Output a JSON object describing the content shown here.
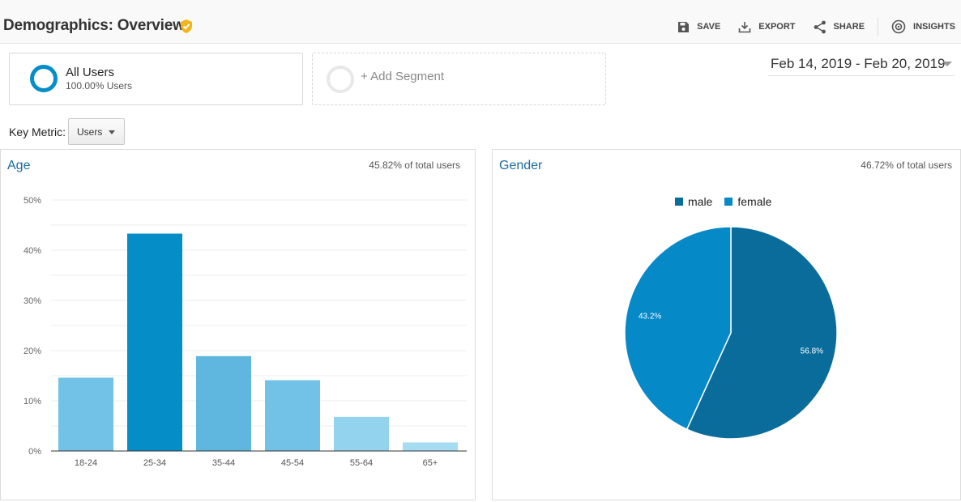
{
  "header": {
    "title": "Demographics: Overview",
    "actions": [
      {
        "label": "SAVE",
        "icon": "save-icon"
      },
      {
        "label": "EXPORT",
        "icon": "export-icon"
      },
      {
        "label": "SHARE",
        "icon": "share-icon"
      },
      {
        "label": "INSIGHTS",
        "icon": "insights-icon"
      }
    ]
  },
  "segments": {
    "all_users": {
      "name": "All Users",
      "percent": "100.00% Users"
    },
    "add_segment": "+ Add Segment"
  },
  "date_range": "Feb 14, 2019 - Feb 20, 2019",
  "key_metric": {
    "label": "Key Metric:",
    "value": "Users"
  },
  "colors": {
    "accent": "#058dc7",
    "male": "#0a6c9b",
    "female": "#0589c7",
    "link": "#1a6ba0"
  },
  "panels": {
    "age": {
      "title": "Age",
      "percent_of_total": "45.82% of total users"
    },
    "gender": {
      "title": "Gender",
      "percent_of_total": "46.72% of total users"
    }
  },
  "chart_data": [
    {
      "type": "bar",
      "categories": [
        "18-24",
        "25-34",
        "35-44",
        "45-54",
        "55-64",
        "65+"
      ],
      "values": [
        14.6,
        43.3,
        18.9,
        14.1,
        6.8,
        1.7
      ],
      "colors": [
        "#71c2e6",
        "#058dc7",
        "#5fb7e0",
        "#71c2e6",
        "#94d3ee",
        "#a6dcf2"
      ],
      "ylim": [
        0,
        50
      ],
      "yticks": [
        "0%",
        "10%",
        "20%",
        "30%",
        "40%",
        "50%"
      ],
      "grid": true
    },
    {
      "type": "pie",
      "series": [
        {
          "name": "male",
          "value": 56.8,
          "label": "56.8%",
          "color": "#0a6c9b"
        },
        {
          "name": "female",
          "value": 43.2,
          "label": "43.2%",
          "color": "#0589c7"
        }
      ],
      "legend_position": "top"
    }
  ]
}
